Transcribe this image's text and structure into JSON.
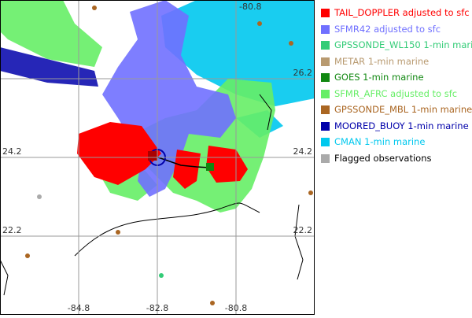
{
  "map": {
    "lat_labels_left": [
      "24.2",
      "22.2"
    ],
    "lat_labels_right": [
      "26.2",
      "24.2",
      "22.2"
    ],
    "lon_labels_top": [
      "-80.8"
    ],
    "lon_labels_bottom": [
      "-84.8",
      "-82.8",
      "-80.8"
    ]
  },
  "legend": {
    "items": [
      {
        "label": "TAIL_DOPPLER adjusted to sfc",
        "color": "#ff0000"
      },
      {
        "label": "SFMR42 adjusted to sfc",
        "color": "#7070ff"
      },
      {
        "label": "GPSSONDE_WL150 1-min marine",
        "color": "#33cc77"
      },
      {
        "label": "METAR 1-min marine",
        "color": "#b89a70"
      },
      {
        "label": "GOES 1-min marine",
        "color": "#118811"
      },
      {
        "label": "SFMR_AFRC adjusted to sfc",
        "color": "#66ee66"
      },
      {
        "label": "GPSSONDE_MBL 1-min marine",
        "color": "#aa6622"
      },
      {
        "label": "MOORED_BUOY 1-min marine",
        "color": "#0000aa"
      },
      {
        "label": "CMAN 1-min marine",
        "color": "#00c8ee"
      },
      {
        "label": "Flagged observations",
        "color": "#aaaaaa"
      }
    ]
  }
}
